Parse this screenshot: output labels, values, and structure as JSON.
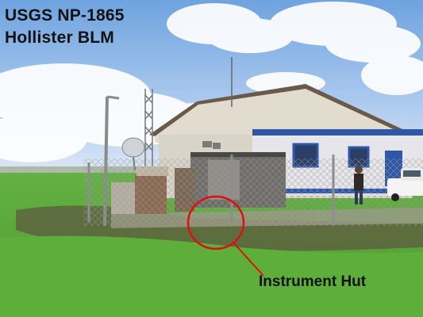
{
  "title": {
    "line1": "USGS NP-1865",
    "line2": "Hollister BLM"
  },
  "annotation": {
    "label": "Instrument Hut",
    "color": "#e01010"
  },
  "scene": {
    "sky_color": "#8fb6e6",
    "grass_color": "#5aa83a",
    "building_wall_color": "#d9d4c8",
    "building_trim_color": "#2f57a8"
  }
}
